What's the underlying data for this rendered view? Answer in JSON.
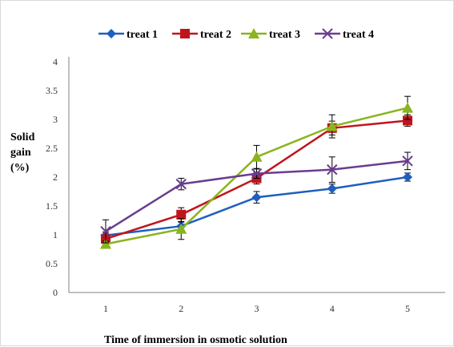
{
  "chart_data": {
    "type": "line",
    "title": "",
    "xlabel": "Time of immersion in osmotic solution",
    "ylabel_lines": [
      "Solid",
      "gain",
      "(%)"
    ],
    "categories": [
      "1",
      "2",
      "3",
      "4",
      "5"
    ],
    "ylim": [
      0,
      4
    ],
    "yticks": [
      "0",
      "0.5",
      "1",
      "1.5",
      "2",
      "2.5",
      "3",
      "3.5",
      "4"
    ],
    "grid": false,
    "legend_position": "top",
    "error_bars": true,
    "series": [
      {
        "name": "treat 1",
        "color": "#1f5fbf",
        "marker": "diamond",
        "values": [
          0.99,
          1.15,
          1.65,
          1.8,
          2.0
        ],
        "errors": [
          0.06,
          0.07,
          0.1,
          0.08,
          0.07
        ]
      },
      {
        "name": "treat 2",
        "color": "#c0141b",
        "marker": "square",
        "values": [
          0.93,
          1.35,
          1.98,
          2.85,
          2.98
        ],
        "errors": [
          0.07,
          0.12,
          0.1,
          0.12,
          0.1
        ]
      },
      {
        "name": "treat 3",
        "color": "#8ab41e",
        "marker": "triangle",
        "values": [
          0.84,
          1.1,
          2.35,
          2.88,
          3.2
        ],
        "errors": [
          0.05,
          0.18,
          0.2,
          0.2,
          0.2
        ]
      },
      {
        "name": "treat 4",
        "color": "#6a3d8f",
        "marker": "x",
        "values": [
          1.06,
          1.88,
          2.06,
          2.13,
          2.28
        ],
        "errors": [
          0.2,
          0.1,
          0.08,
          0.22,
          0.15
        ]
      }
    ]
  }
}
